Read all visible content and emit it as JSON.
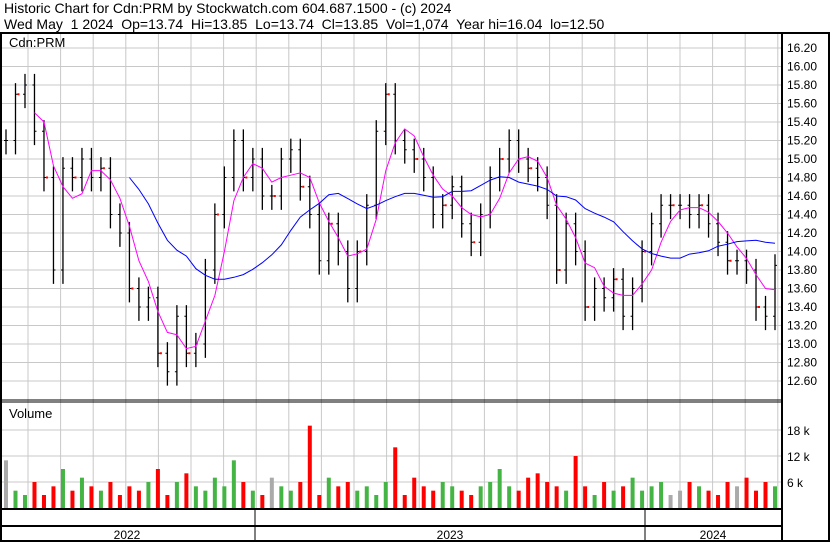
{
  "header": {
    "title": "Historic Chart for Cdn:PRM by Stockwatch.com 604.687.1500 - (c) 2024",
    "quote": "Wed May  1 2024  Op=13.74  Hi=13.85  Lo=13.74  Cl=13.85  Vol=1,074  Year hi=16.04  lo=12.50"
  },
  "chart_data": [
    {
      "type": "bar",
      "subtype": "ohlc",
      "title": "Cdn:PRM",
      "ylim": [
        12.4,
        16.3
      ],
      "y_ticks": [
        "16.20",
        "16.00",
        "15.80",
        "15.60",
        "15.40",
        "15.20",
        "15.00",
        "14.80",
        "14.60",
        "14.40",
        "14.20",
        "14.00",
        "13.80",
        "13.60",
        "13.40",
        "13.20",
        "13.00",
        "12.80",
        "12.60"
      ],
      "x_tick_labels": [
        "2022",
        "2023",
        "2024"
      ],
      "grid": true,
      "close": [
        15.2,
        15.7,
        15.8,
        15.3,
        14.8,
        13.8,
        14.9,
        14.8,
        15.0,
        14.8,
        14.9,
        14.4,
        14.2,
        13.6,
        13.4,
        13.5,
        12.9,
        12.7,
        13.3,
        12.9,
        13.0,
        13.8,
        14.4,
        14.8,
        15.2,
        14.8,
        15.0,
        14.6,
        14.6,
        15.0,
        15.1,
        14.7,
        14.4,
        13.9,
        14.3,
        14.0,
        13.6,
        14.0,
        14.5,
        15.3,
        15.7,
        15.2,
        15.1,
        15.0,
        14.8,
        14.4,
        14.5,
        14.7,
        14.3,
        14.1,
        14.4,
        14.8,
        15.0,
        15.2,
        15.0,
        14.9,
        14.8,
        14.5,
        13.8,
        14.3,
        14.0,
        13.4,
        13.6,
        13.5,
        13.7,
        13.3,
        13.6,
        14.0,
        14.3,
        14.5,
        14.5,
        14.5,
        14.4,
        14.5,
        14.3,
        14.1,
        13.9,
        13.9,
        13.8,
        13.4,
        13.3,
        13.85
      ],
      "moving_averages": [
        {
          "color": "#ff00ff",
          "window": 4
        },
        {
          "color": "#0000ff",
          "window": 14
        }
      ],
      "colors": {
        "bars": "#000000",
        "up_dot": "#ff0000"
      }
    },
    {
      "type": "bar",
      "title": "Volume",
      "y_ticks": [
        "18 k",
        "12 k",
        "6 k"
      ],
      "ylim_k": [
        0,
        24
      ],
      "values_k": [
        11,
        4,
        3,
        6,
        3,
        5,
        9,
        4,
        7,
        5,
        4,
        6,
        3,
        5,
        4,
        6,
        9,
        3,
        6,
        8,
        5,
        4,
        7,
        5,
        11,
        6,
        4,
        3,
        7,
        5,
        4,
        6,
        19,
        3,
        7,
        5,
        6,
        4,
        5,
        3,
        6,
        14,
        3,
        7,
        5,
        4,
        6,
        5,
        4,
        3,
        5,
        6,
        9,
        5,
        4,
        7,
        8,
        6,
        5,
        4,
        12,
        5,
        3,
        6,
        4,
        5,
        7,
        4,
        5,
        6,
        3,
        4,
        6,
        5,
        4,
        3,
        6,
        5,
        7,
        4,
        6,
        5
      ],
      "colors": {
        "up": "#44b444",
        "down": "#ff0000",
        "flat": "#aaaaaa"
      }
    }
  ]
}
